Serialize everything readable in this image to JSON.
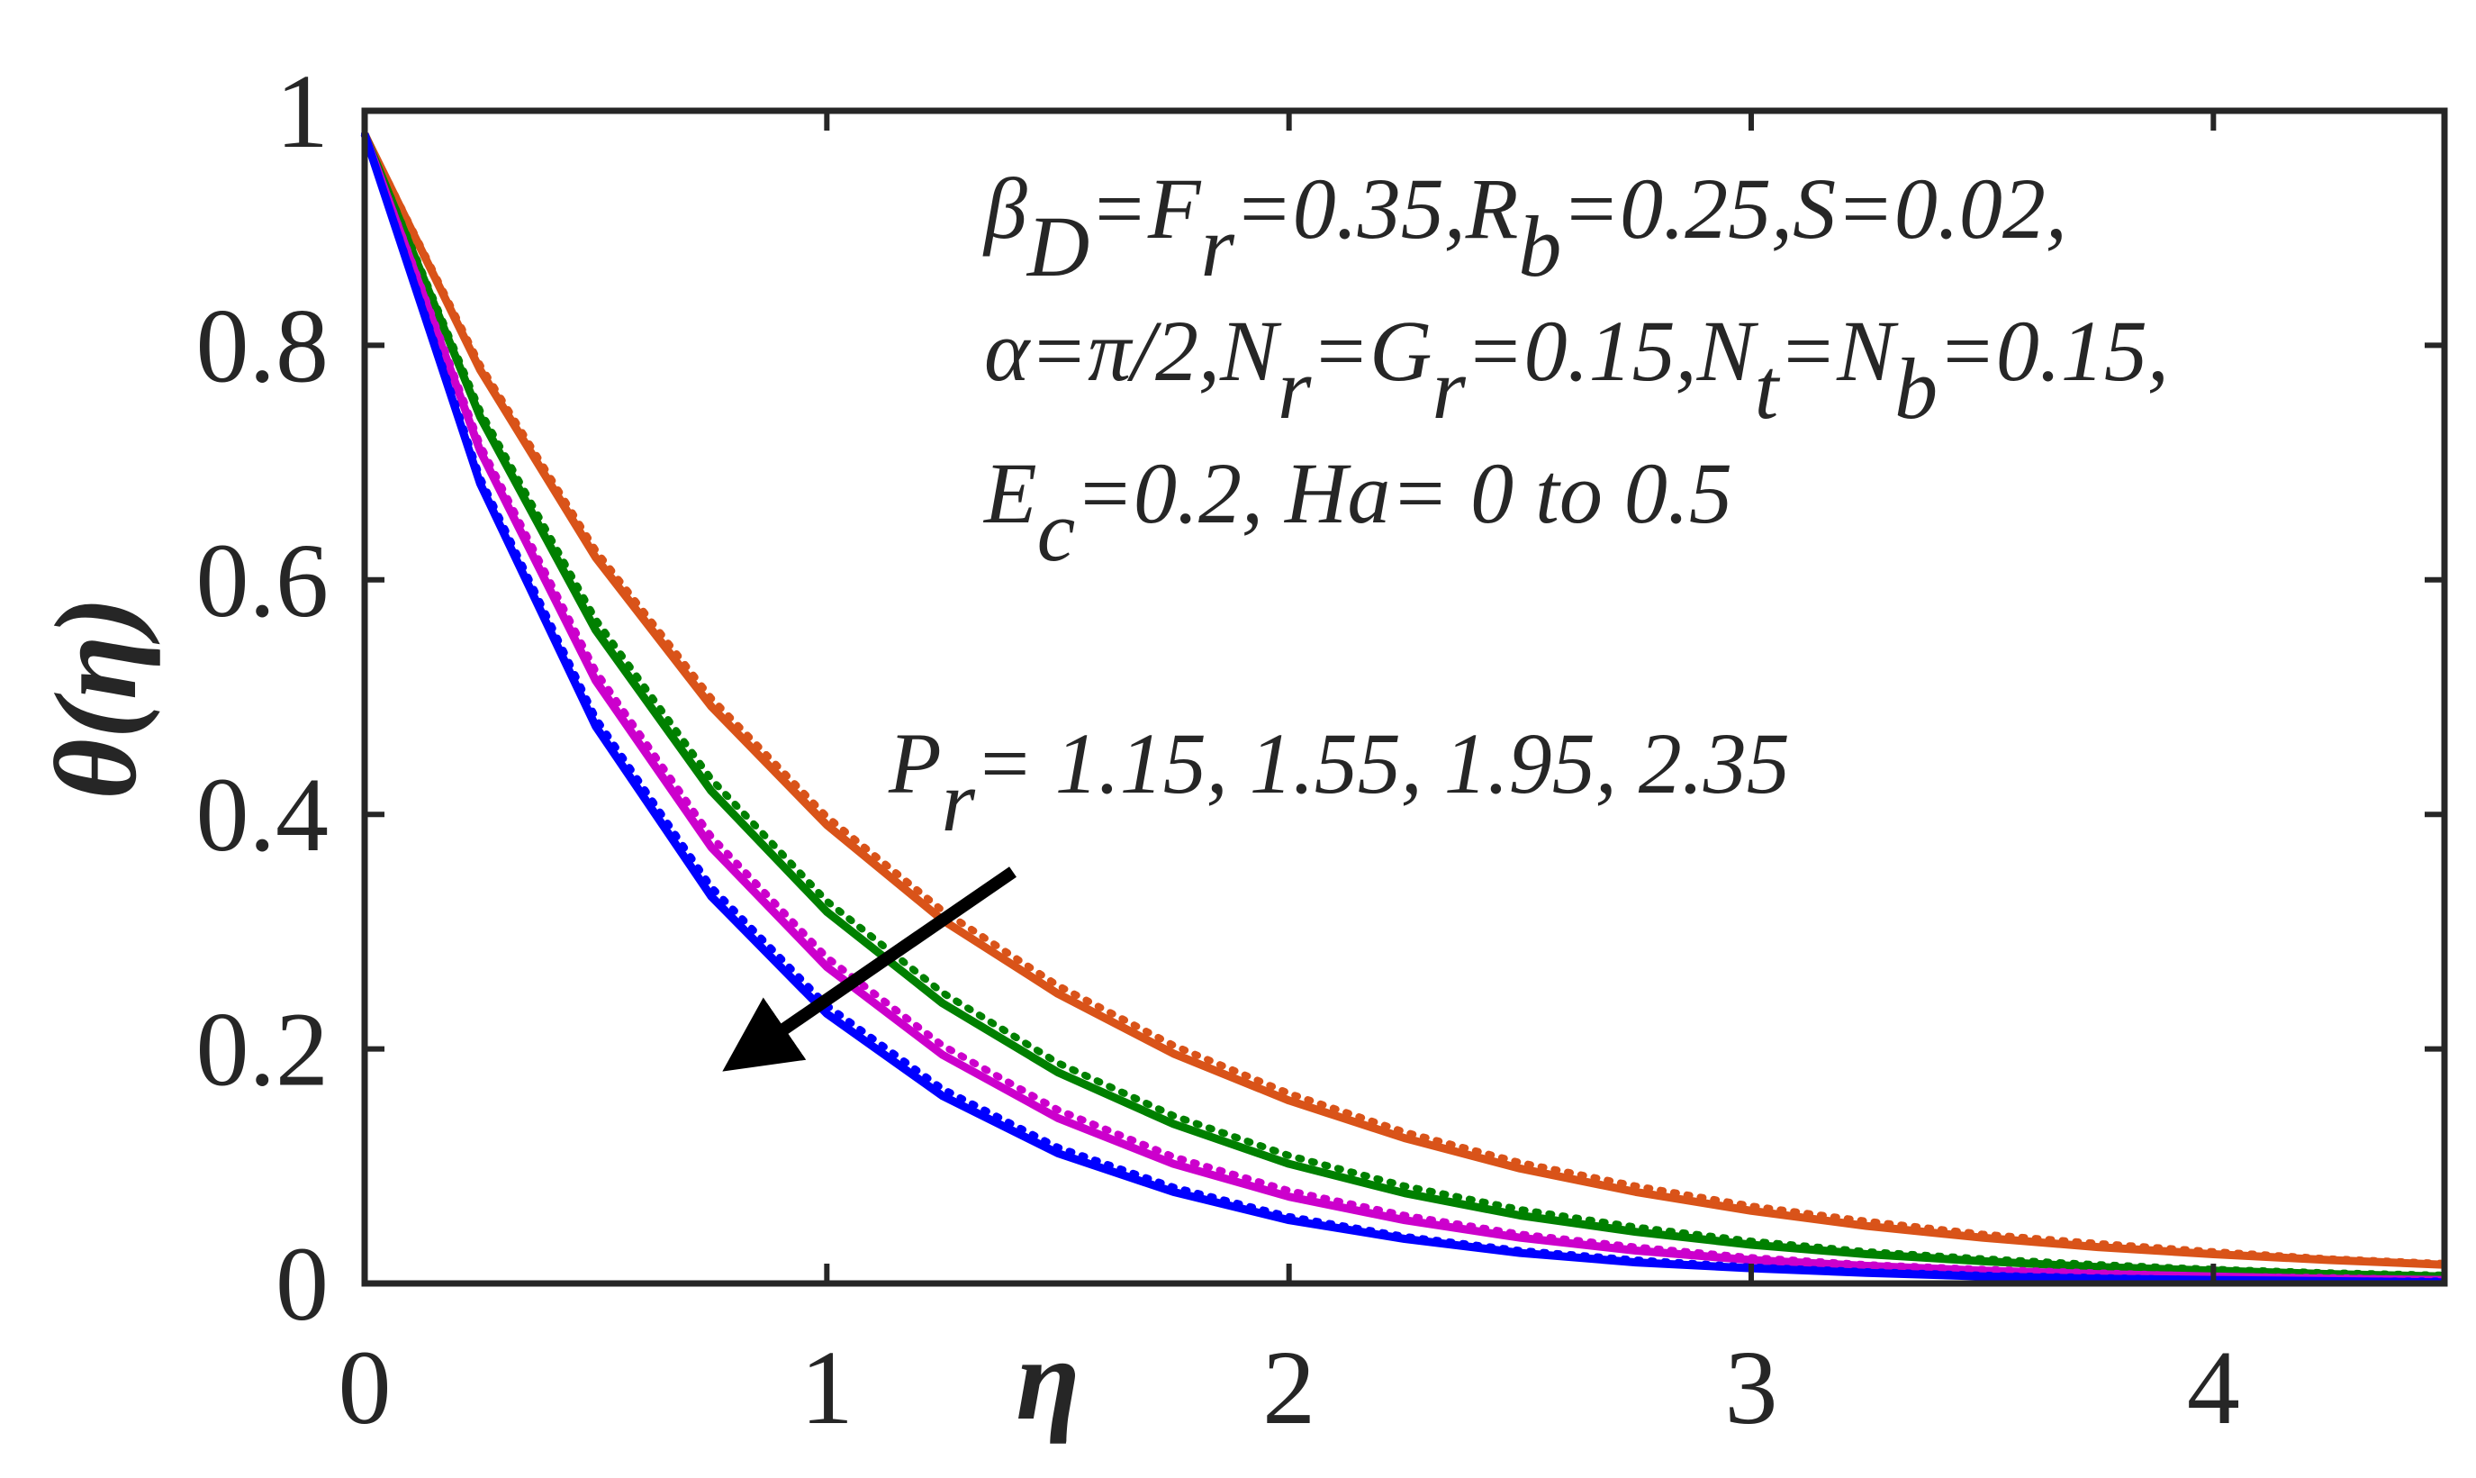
{
  "chart_data": {
    "type": "line",
    "x_label": "η",
    "y_label": "θ(η)",
    "xlim": [
      0,
      4.5
    ],
    "ylim": [
      0,
      1
    ],
    "xticks": [
      0,
      1,
      2,
      3,
      4
    ],
    "yticks": [
      0,
      0.2,
      0.4,
      0.6,
      0.8,
      1
    ],
    "x": [
      0,
      0.25,
      0.5,
      0.75,
      1,
      1.25,
      1.5,
      1.75,
      2,
      2.25,
      2.5,
      2.75,
      3,
      3.25,
      3.5,
      3.75,
      4,
      4.25,
      4.5
    ],
    "series": [
      {
        "color": "#d95319",
        "style": "solid",
        "values": [
          0.98,
          0.779,
          0.619,
          0.492,
          0.391,
          0.31,
          0.247,
          0.196,
          0.156,
          0.124,
          0.098,
          0.078,
          0.062,
          0.049,
          0.039,
          0.031,
          0.025,
          0.02,
          0.016
        ]
      },
      {
        "color": "#d95319",
        "style": "dotted",
        "values": [
          0.98,
          0.783,
          0.625,
          0.499,
          0.398,
          0.318,
          0.254,
          0.203,
          0.162,
          0.129,
          0.103,
          0.083,
          0.066,
          0.053,
          0.042,
          0.034,
          0.027,
          0.021,
          0.017
        ]
      },
      {
        "color": "#008000",
        "style": "solid",
        "values": [
          0.98,
          0.739,
          0.557,
          0.42,
          0.317,
          0.239,
          0.18,
          0.136,
          0.102,
          0.077,
          0.058,
          0.044,
          0.033,
          0.025,
          0.019,
          0.014,
          0.011,
          0.008,
          0.006
        ]
      },
      {
        "color": "#008000",
        "style": "dotted",
        "values": [
          0.98,
          0.744,
          0.566,
          0.43,
          0.326,
          0.248,
          0.188,
          0.143,
          0.109,
          0.083,
          0.063,
          0.048,
          0.036,
          0.027,
          0.021,
          0.016,
          0.012,
          0.009,
          0.007
        ]
      },
      {
        "color": "#cc00cc",
        "style": "solid",
        "values": [
          0.98,
          0.71,
          0.514,
          0.372,
          0.27,
          0.195,
          0.141,
          0.102,
          0.074,
          0.054,
          0.039,
          0.028,
          0.02,
          0.015,
          0.011,
          0.008,
          0.006,
          0.004,
          0.003
        ]
      },
      {
        "color": "#cc00cc",
        "style": "dotted",
        "values": [
          0.98,
          0.715,
          0.522,
          0.381,
          0.278,
          0.203,
          0.148,
          0.108,
          0.079,
          0.058,
          0.042,
          0.031,
          0.022,
          0.016,
          0.012,
          0.009,
          0.006,
          0.005,
          0.003
        ]
      },
      {
        "color": "#0000ff",
        "style": "solid",
        "values": [
          0.98,
          0.682,
          0.475,
          0.33,
          0.23,
          0.16,
          0.111,
          0.078,
          0.054,
          0.038,
          0.026,
          0.018,
          0.013,
          0.009,
          0.006,
          0.004,
          0.003,
          0.002,
          0.001
        ]
      },
      {
        "color": "#0000ff",
        "style": "dotted",
        "values": [
          0.98,
          0.687,
          0.482,
          0.338,
          0.237,
          0.166,
          0.116,
          0.082,
          0.057,
          0.04,
          0.028,
          0.02,
          0.014,
          0.01,
          0.007,
          0.005,
          0.003,
          0.002,
          0.002
        ]
      }
    ],
    "annotation_lines": [
      [
        "β",
        "D",
        "=F",
        "r",
        "=0.35,R",
        "b",
        "=0.25,S=0.02,"
      ],
      [
        "α=π/2,N",
        "r",
        "=G",
        "r",
        "=0.15,N",
        "t",
        "=N",
        "b",
        "=0.15,"
      ],
      [
        "E",
        "c",
        "=0.2, Ha= 0 to 0.5"
      ]
    ],
    "arrow_label": [
      "P",
      "r",
      "= 1.15, 1.55, 1.95, 2.35"
    ]
  }
}
